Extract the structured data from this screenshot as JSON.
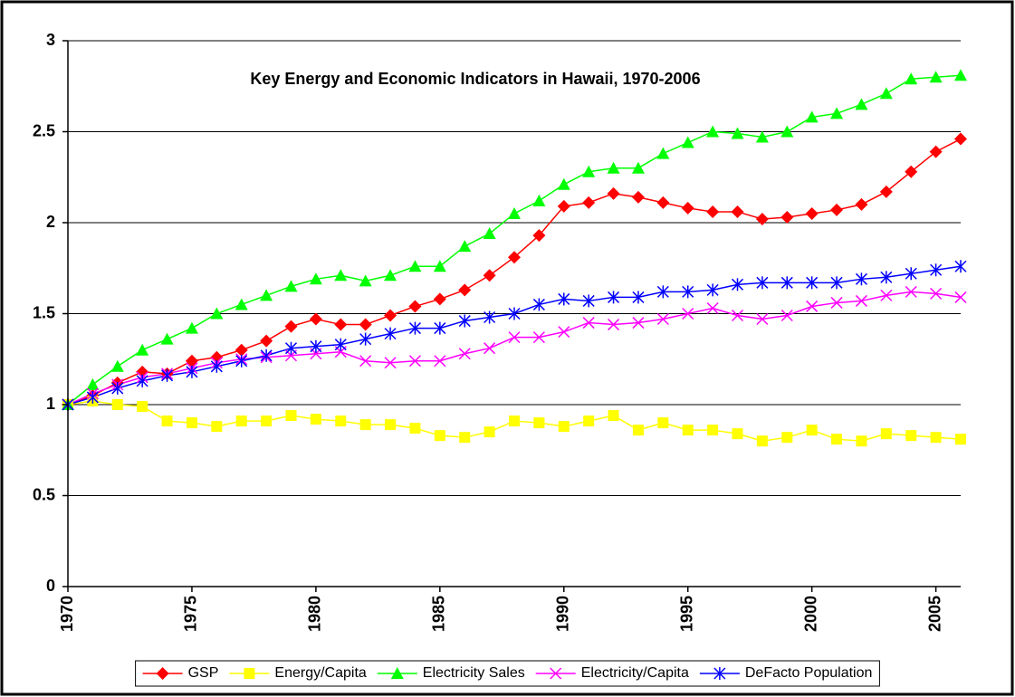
{
  "chart_data": {
    "type": "line",
    "title": "Key Energy and Economic Indicators in Hawaii, 1970-2006",
    "x": [
      1970,
      1971,
      1972,
      1973,
      1974,
      1975,
      1976,
      1977,
      1978,
      1979,
      1980,
      1981,
      1982,
      1983,
      1984,
      1985,
      1986,
      1987,
      1988,
      1989,
      1990,
      1991,
      1992,
      1993,
      1994,
      1995,
      1996,
      1997,
      1998,
      1999,
      2000,
      2001,
      2002,
      2003,
      2004,
      2005,
      2006
    ],
    "xlim": [
      1970,
      2006
    ],
    "xticks": [
      1970,
      1975,
      1980,
      1985,
      1990,
      1995,
      2000,
      2005
    ],
    "ylim": [
      0,
      3
    ],
    "yticks": [
      0,
      0.5,
      1,
      1.5,
      2,
      2.5,
      3
    ],
    "grid": true,
    "legend": "bottom",
    "series": [
      {
        "name": "GSP",
        "color": "#ff0000",
        "marker": "diamond",
        "values": [
          1.0,
          1.05,
          1.12,
          1.18,
          1.17,
          1.24,
          1.26,
          1.3,
          1.35,
          1.43,
          1.47,
          1.44,
          1.44,
          1.49,
          1.54,
          1.58,
          1.63,
          1.71,
          1.81,
          1.93,
          2.09,
          2.11,
          2.16,
          2.14,
          2.11,
          2.08,
          2.06,
          2.06,
          2.02,
          2.03,
          2.05,
          2.07,
          2.1,
          2.17,
          2.28,
          2.39,
          2.46
        ]
      },
      {
        "name": "Energy/Capita",
        "color": "#ffff00",
        "marker": "square",
        "values": [
          1.0,
          1.02,
          1.0,
          0.99,
          0.91,
          0.9,
          0.88,
          0.91,
          0.91,
          0.94,
          0.92,
          0.91,
          0.89,
          0.89,
          0.87,
          0.83,
          0.82,
          0.85,
          0.91,
          0.9,
          0.88,
          0.91,
          0.94,
          0.86,
          0.9,
          0.86,
          0.86,
          0.84,
          0.8,
          0.82,
          0.86,
          0.81,
          0.8,
          0.84,
          0.83,
          0.82,
          0.81
        ]
      },
      {
        "name": "Electricity Sales",
        "color": "#00ff00",
        "marker": "triangle",
        "values": [
          1.0,
          1.11,
          1.21,
          1.3,
          1.36,
          1.42,
          1.5,
          1.55,
          1.6,
          1.65,
          1.69,
          1.71,
          1.68,
          1.71,
          1.76,
          1.76,
          1.87,
          1.94,
          2.05,
          2.12,
          2.21,
          2.28,
          2.3,
          2.3,
          2.38,
          2.44,
          2.5,
          2.49,
          2.47,
          2.5,
          2.58,
          2.6,
          2.65,
          2.71,
          2.79,
          2.8,
          2.81
        ]
      },
      {
        "name": "Electricity/Capita",
        "color": "#ff00ff",
        "marker": "x",
        "values": [
          1.0,
          1.06,
          1.11,
          1.15,
          1.17,
          1.2,
          1.23,
          1.25,
          1.26,
          1.27,
          1.28,
          1.29,
          1.24,
          1.23,
          1.24,
          1.24,
          1.28,
          1.31,
          1.37,
          1.37,
          1.4,
          1.45,
          1.44,
          1.45,
          1.47,
          1.5,
          1.53,
          1.49,
          1.47,
          1.49,
          1.54,
          1.56,
          1.57,
          1.6,
          1.62,
          1.61,
          1.59
        ]
      },
      {
        "name": "DeFacto Population",
        "color": "#0000ff",
        "marker": "star",
        "values": [
          1.0,
          1.04,
          1.09,
          1.13,
          1.16,
          1.18,
          1.21,
          1.24,
          1.27,
          1.31,
          1.32,
          1.33,
          1.36,
          1.39,
          1.42,
          1.42,
          1.46,
          1.48,
          1.5,
          1.55,
          1.58,
          1.57,
          1.59,
          1.59,
          1.62,
          1.62,
          1.63,
          1.66,
          1.67,
          1.67,
          1.67,
          1.67,
          1.69,
          1.7,
          1.72,
          1.74,
          1.76
        ]
      }
    ]
  }
}
